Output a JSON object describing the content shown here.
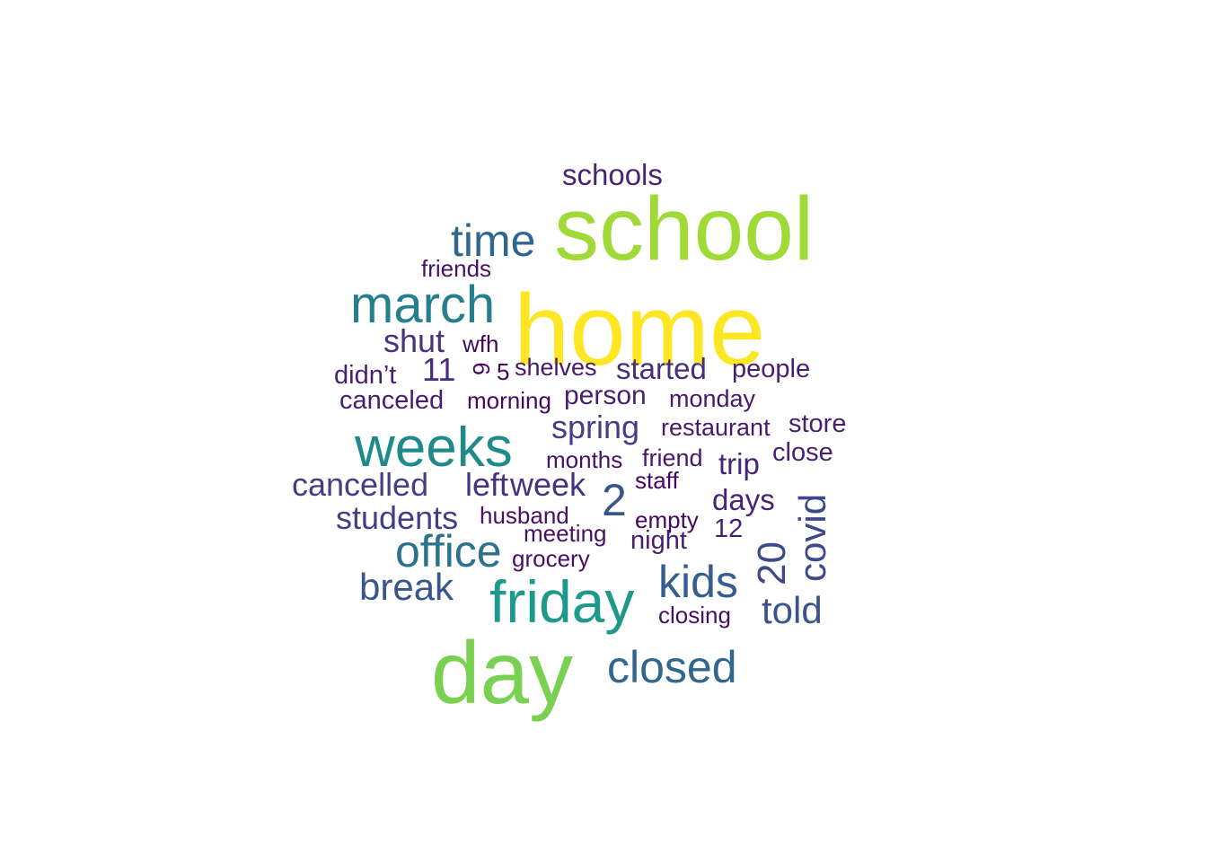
{
  "words": [
    {
      "text": "home",
      "color": "#fde725",
      "rotated": false
    },
    {
      "text": "school",
      "color": "#a0da39",
      "rotated": false
    },
    {
      "text": "day",
      "color": "#7ad151",
      "rotated": false
    },
    {
      "text": "friday",
      "color": "#1f9a8a",
      "rotated": false
    },
    {
      "text": "weeks",
      "color": "#1f8a8a",
      "rotated": false
    },
    {
      "text": "march",
      "color": "#277f8e",
      "rotated": false
    },
    {
      "text": "office",
      "color": "#2c728e",
      "rotated": false
    },
    {
      "text": "time",
      "color": "#31668e",
      "rotated": false
    },
    {
      "text": "closed",
      "color": "#31668e",
      "rotated": false
    },
    {
      "text": "kids",
      "color": "#365d8d",
      "rotated": false
    },
    {
      "text": "2",
      "color": "#39558c",
      "rotated": false
    },
    {
      "text": "break",
      "color": "#39558c",
      "rotated": false
    },
    {
      "text": "told",
      "color": "#3b528b",
      "rotated": false
    },
    {
      "text": "20",
      "color": "#3e4989",
      "rotated": true
    },
    {
      "text": "covid",
      "color": "#3e4989",
      "rotated": true
    },
    {
      "text": "spring",
      "color": "#433e85",
      "rotated": false
    },
    {
      "text": "cancelled",
      "color": "#433e85",
      "rotated": false
    },
    {
      "text": "students",
      "color": "#433e85",
      "rotated": false
    },
    {
      "text": "week",
      "color": "#46327e",
      "rotated": false
    },
    {
      "text": "left",
      "color": "#46327e",
      "rotated": false
    },
    {
      "text": "shut",
      "color": "#46327e",
      "rotated": false
    },
    {
      "text": "started",
      "color": "#472d7b",
      "rotated": false
    },
    {
      "text": "11",
      "color": "#472d7b",
      "rotated": false
    },
    {
      "text": "schools",
      "color": "#482475",
      "rotated": false
    },
    {
      "text": "trip",
      "color": "#482475",
      "rotated": false
    },
    {
      "text": "days",
      "color": "#482475",
      "rotated": false
    },
    {
      "text": "people",
      "color": "#481f70",
      "rotated": false
    },
    {
      "text": "person",
      "color": "#481f70",
      "rotated": false
    },
    {
      "text": "canceled",
      "color": "#481f70",
      "rotated": false
    },
    {
      "text": "store",
      "color": "#481f70",
      "rotated": false
    },
    {
      "text": "close",
      "color": "#481f70",
      "rotated": false
    },
    {
      "text": "didn’t",
      "color": "#481f70",
      "rotated": false
    },
    {
      "text": "12",
      "color": "#481f70",
      "rotated": false
    },
    {
      "text": "night",
      "color": "#481f70",
      "rotated": false
    },
    {
      "text": "restaurant",
      "color": "#48186a",
      "rotated": false
    },
    {
      "text": "monday",
      "color": "#48186a",
      "rotated": false
    },
    {
      "text": "friend",
      "color": "#48186a",
      "rotated": false
    },
    {
      "text": "shelves",
      "color": "#48186a",
      "rotated": false
    },
    {
      "text": "husband",
      "color": "#471063",
      "rotated": false
    },
    {
      "text": "meeting",
      "color": "#471063",
      "rotated": false
    },
    {
      "text": "grocery",
      "color": "#471063",
      "rotated": false
    },
    {
      "text": "months",
      "color": "#471063",
      "rotated": false
    },
    {
      "text": "friends",
      "color": "#471063",
      "rotated": false
    },
    {
      "text": "closing",
      "color": "#471063",
      "rotated": false
    },
    {
      "text": "empty",
      "color": "#46085c",
      "rotated": false
    },
    {
      "text": "staff",
      "color": "#46085c",
      "rotated": false
    },
    {
      "text": "morning",
      "color": "#46085c",
      "rotated": false
    },
    {
      "text": "wfh",
      "color": "#46085c",
      "rotated": false
    },
    {
      "text": "5",
      "color": "#46085c",
      "rotated": false
    },
    {
      "text": "9",
      "color": "#46085c",
      "rotated": true
    }
  ]
}
